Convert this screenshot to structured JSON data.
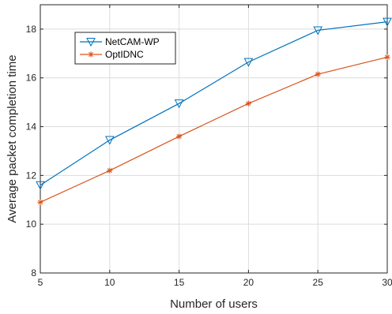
{
  "chart_data": {
    "type": "line",
    "xlabel": "Number of users",
    "ylabel": "Average  packet completion time",
    "xlim": [
      5,
      30
    ],
    "ylim": [
      8,
      19
    ],
    "xticks": [
      5,
      10,
      15,
      20,
      25,
      30
    ],
    "yticks": [
      8,
      10,
      12,
      14,
      16,
      18
    ],
    "grid": true,
    "legend_position": "top-left",
    "x": [
      5,
      10,
      15,
      20,
      25,
      30
    ],
    "series": [
      {
        "name": "NetCAM-WP",
        "values": [
          11.6,
          13.45,
          14.95,
          16.65,
          17.95,
          18.3
        ],
        "color": "#0072bd",
        "marker": "triangle-down"
      },
      {
        "name": "OptIDNC",
        "values": [
          10.9,
          12.2,
          13.6,
          14.95,
          16.15,
          16.85
        ],
        "color": "#d95319",
        "marker": "asterisk"
      }
    ]
  }
}
